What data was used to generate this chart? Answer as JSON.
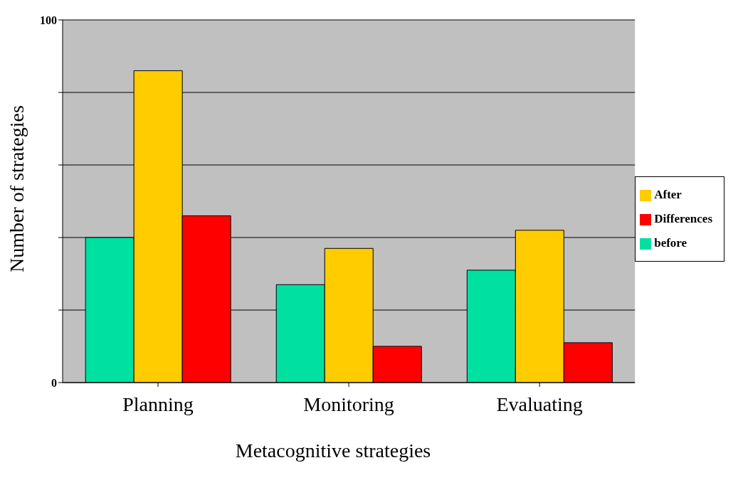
{
  "chart_data": {
    "type": "bar",
    "xlabel": "Metacognitive strategies",
    "ylabel": "Number of strategies",
    "categories": [
      "Planning",
      "Monitoring",
      "Evaluating"
    ],
    "series": [
      {
        "name": "before",
        "color": "#00e0a0",
        "values": [
          40,
          27,
          31
        ]
      },
      {
        "name": "After",
        "color": "#ffcc00",
        "values": [
          86,
          37,
          42
        ]
      },
      {
        "name": "Differences",
        "color": "#ff0000",
        "values": [
          46,
          10,
          11
        ]
      }
    ],
    "ylim": [
      0,
      100
    ],
    "yticks": [
      0,
      {
        "value": 20,
        "label": null
      },
      {
        "value": 40,
        "label": null
      },
      {
        "value": 60,
        "label": null
      },
      {
        "value": 80,
        "label": null
      },
      100
    ],
    "grid": "y",
    "legend": "right"
  }
}
